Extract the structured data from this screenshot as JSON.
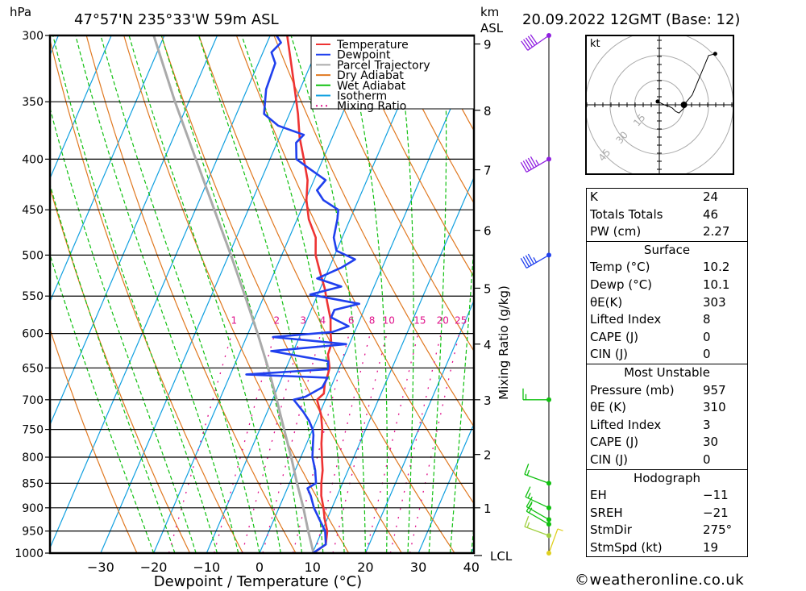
{
  "header": {
    "pressure_unit": "hPa",
    "location": "47°57'N  235°33'W  59m  ASL",
    "height_unit_line1": "km",
    "height_unit_line2": "ASL",
    "datetime": "20.09.2022  12GMT  (Base: 12)"
  },
  "chart_data": {
    "type": "skew-t",
    "title": "47°57'N 235°33'W 59m ASL",
    "xlabel": "Dewpoint / Temperature (°C)",
    "ylabel_left": "hPa",
    "ylabel_right": "km ASL",
    "mixing_ratio_label": "Mixing Ratio (g/kg)",
    "xlim": [
      -40,
      40
    ],
    "ylim_hpa": [
      1000,
      300
    ],
    "x_ticks": [
      -30,
      -20,
      -10,
      0,
      10,
      20,
      30,
      40
    ],
    "x_tick_labels": [
      "−30",
      "−20",
      "−10",
      "0",
      "10",
      "20",
      "30",
      "40"
    ],
    "pressure_levels": [
      300,
      350,
      400,
      450,
      500,
      550,
      600,
      650,
      700,
      750,
      800,
      850,
      900,
      950,
      1000
    ],
    "height_ticks_km": [
      1,
      2,
      3,
      4,
      5,
      6,
      7,
      8,
      9
    ],
    "height_ticks_hpa": [
      900,
      795,
      700,
      615,
      540,
      472,
      410,
      357,
      306
    ],
    "lcl_label": "LCL",
    "lcl_hpa": 1000,
    "mixing_ratio_lines": [
      1,
      2,
      3,
      4,
      6,
      8,
      10,
      15,
      20,
      25
    ],
    "mixing_ratio_label_hpa": 590,
    "legend": {
      "placement": "top-right",
      "entries": [
        {
          "label": "Temperature",
          "color": "#ee3333",
          "style": "solid"
        },
        {
          "label": "Dewpoint",
          "color": "#2040ee",
          "style": "solid"
        },
        {
          "label": "Parcel Trajectory",
          "color": "#aaaaaa",
          "style": "solid"
        },
        {
          "label": "Dry Adiabat",
          "color": "#e07820",
          "style": "solid"
        },
        {
          "label": "Wet Adiabat",
          "color": "#10c010",
          "style": "dashed"
        },
        {
          "label": "Isotherm",
          "color": "#10a0e0",
          "style": "solid"
        },
        {
          "label": "Mixing Ratio",
          "color": "#e0108a",
          "style": "dotted"
        }
      ]
    },
    "series": [
      {
        "name": "Temperature",
        "color": "#ee3333",
        "points": [
          [
            1000,
            10.2
          ],
          [
            980,
            11.8
          ],
          [
            950,
            11.0
          ],
          [
            925,
            9.6
          ],
          [
            900,
            8.4
          ],
          [
            875,
            7.0
          ],
          [
            850,
            6.0
          ],
          [
            825,
            5.2
          ],
          [
            800,
            4.0
          ],
          [
            775,
            2.8
          ],
          [
            750,
            1.8
          ],
          [
            725,
            0.4
          ],
          [
            700,
            -1.6
          ],
          [
            690,
            -0.8
          ],
          [
            675,
            -1.4
          ],
          [
            660,
            -1.6
          ],
          [
            650,
            -1.8
          ],
          [
            630,
            -3.2
          ],
          [
            615,
            -3.4
          ],
          [
            600,
            -4.4
          ],
          [
            580,
            -5.6
          ],
          [
            560,
            -7.4
          ],
          [
            540,
            -9.2
          ],
          [
            520,
            -11.4
          ],
          [
            500,
            -13.6
          ],
          [
            480,
            -15.0
          ],
          [
            460,
            -17.8
          ],
          [
            440,
            -19.8
          ],
          [
            420,
            -21.2
          ],
          [
            400,
            -23.6
          ],
          [
            380,
            -26.2
          ],
          [
            360,
            -28.4
          ],
          [
            340,
            -31.0
          ],
          [
            320,
            -33.8
          ],
          [
            300,
            -36.8
          ]
        ]
      },
      {
        "name": "Dewpoint",
        "color": "#2040ee",
        "points": [
          [
            1000,
            10.1
          ],
          [
            980,
            11.8
          ],
          [
            950,
            10.6
          ],
          [
            925,
            8.6
          ],
          [
            900,
            6.6
          ],
          [
            875,
            5.0
          ],
          [
            860,
            3.8
          ],
          [
            850,
            5.0
          ],
          [
            825,
            3.8
          ],
          [
            800,
            2.2
          ],
          [
            775,
            1.2
          ],
          [
            760,
            0.6
          ],
          [
            750,
            0.0
          ],
          [
            735,
            -1.4
          ],
          [
            720,
            -3.2
          ],
          [
            700,
            -6.0
          ],
          [
            695,
            -4.0
          ],
          [
            680,
            -1.6
          ],
          [
            665,
            -1.4
          ],
          [
            660,
            -17.0
          ],
          [
            652,
            -2.0
          ],
          [
            640,
            -2.6
          ],
          [
            625,
            -14.2
          ],
          [
            615,
            -0.6
          ],
          [
            605,
            -15.0
          ],
          [
            598,
            -4.2
          ],
          [
            590,
            -1.6
          ],
          [
            578,
            -5.6
          ],
          [
            568,
            -5.6
          ],
          [
            560,
            -1.4
          ],
          [
            548,
            -11.4
          ],
          [
            538,
            -6.2
          ],
          [
            528,
            -11.4
          ],
          [
            515,
            -7.8
          ],
          [
            505,
            -5.8
          ],
          [
            495,
            -10.0
          ],
          [
            480,
            -11.6
          ],
          [
            460,
            -12.4
          ],
          [
            450,
            -13.0
          ],
          [
            440,
            -16.6
          ],
          [
            430,
            -18.6
          ],
          [
            420,
            -17.8
          ],
          [
            410,
            -21.4
          ],
          [
            400,
            -25.0
          ],
          [
            385,
            -26.4
          ],
          [
            378,
            -25.6
          ],
          [
            370,
            -31.2
          ],
          [
            360,
            -34.8
          ],
          [
            340,
            -36.4
          ],
          [
            320,
            -36.8
          ],
          [
            312,
            -38.4
          ],
          [
            305,
            -37.4
          ],
          [
            300,
            -38.8
          ]
        ]
      },
      {
        "name": "Parcel Trajectory",
        "color": "#aaaaaa",
        "points": [
          [
            1000,
            10.2
          ],
          [
            950,
            7.4
          ],
          [
            900,
            4.6
          ],
          [
            850,
            1.4
          ],
          [
            800,
            -1.8
          ],
          [
            750,
            -5.4
          ],
          [
            700,
            -9.2
          ],
          [
            650,
            -13.4
          ],
          [
            600,
            -18.2
          ],
          [
            550,
            -23.6
          ],
          [
            500,
            -29.6
          ],
          [
            450,
            -36.4
          ],
          [
            400,
            -44.0
          ],
          [
            350,
            -52.6
          ],
          [
            300,
            -62.0
          ]
        ]
      }
    ]
  },
  "wind_barbs": {
    "unit": "kt",
    "levels": [
      {
        "hpa": 300,
        "dir_deg": 235,
        "speed_kt": 50,
        "color": "#9020e0"
      },
      {
        "hpa": 400,
        "dir_deg": 240,
        "speed_kt": 55,
        "color": "#9020e0"
      },
      {
        "hpa": 500,
        "dir_deg": 240,
        "speed_kt": 45,
        "color": "#2040ee"
      },
      {
        "hpa": 700,
        "dir_deg": 270,
        "speed_kt": 15,
        "color": "#10c010"
      },
      {
        "hpa": 850,
        "dir_deg": 290,
        "speed_kt": 15,
        "color": "#10c010"
      },
      {
        "hpa": 900,
        "dir_deg": 295,
        "speed_kt": 15,
        "color": "#10c010"
      },
      {
        "hpa": 925,
        "dir_deg": 300,
        "speed_kt": 15,
        "color": "#10c010"
      },
      {
        "hpa": 935,
        "dir_deg": 300,
        "speed_kt": 15,
        "color": "#10c010"
      },
      {
        "hpa": 960,
        "dir_deg": 290,
        "speed_kt": 15,
        "color": "#a0d040"
      },
      {
        "hpa": 1000,
        "dir_deg": 20,
        "speed_kt": 5,
        "color": "#e0d020"
      }
    ]
  },
  "hodograph": {
    "unit_label": "kt",
    "rings_kt": [
      15,
      30,
      45
    ],
    "ring_labels": [
      "15",
      "30",
      "45"
    ],
    "points_uv_kt": [
      [
        -1,
        2
      ],
      [
        3,
        0
      ],
      [
        6,
        -1
      ],
      [
        8,
        -2
      ],
      [
        10,
        -4
      ],
      [
        12,
        -5
      ],
      [
        14,
        -3
      ],
      [
        16,
        -1
      ],
      [
        15,
        0
      ],
      [
        20,
        6
      ],
      [
        30,
        30
      ],
      [
        34,
        31
      ]
    ]
  },
  "indices": {
    "general": [
      {
        "label": "K",
        "value": "24"
      },
      {
        "label": "Totals Totals",
        "value": "46"
      },
      {
        "label": "PW (cm)",
        "value": "2.27"
      }
    ],
    "surface": {
      "title": "Surface",
      "rows": [
        {
          "label": "Temp (°C)",
          "value": "10.2"
        },
        {
          "label": "Dewp (°C)",
          "value": "10.1"
        },
        {
          "label": "θE(K)",
          "value": "303"
        },
        {
          "label": "Lifted Index",
          "value": "8"
        },
        {
          "label": "CAPE (J)",
          "value": "0"
        },
        {
          "label": "CIN (J)",
          "value": "0"
        }
      ]
    },
    "most_unstable": {
      "title": "Most Unstable",
      "rows": [
        {
          "label": "Pressure (mb)",
          "value": "957"
        },
        {
          "label": "θE (K)",
          "value": "310"
        },
        {
          "label": "Lifted Index",
          "value": "3"
        },
        {
          "label": "CAPE (J)",
          "value": "30"
        },
        {
          "label": "CIN (J)",
          "value": "0"
        }
      ]
    },
    "hodograph": {
      "title": "Hodograph",
      "rows": [
        {
          "label": "EH",
          "value": "−11"
        },
        {
          "label": "SREH",
          "value": "−21"
        },
        {
          "label": "StmDir",
          "value": "275°"
        },
        {
          "label": "StmSpd (kt)",
          "value": "19"
        }
      ]
    }
  },
  "footer": {
    "credit": "©weatheronline.co.uk"
  }
}
